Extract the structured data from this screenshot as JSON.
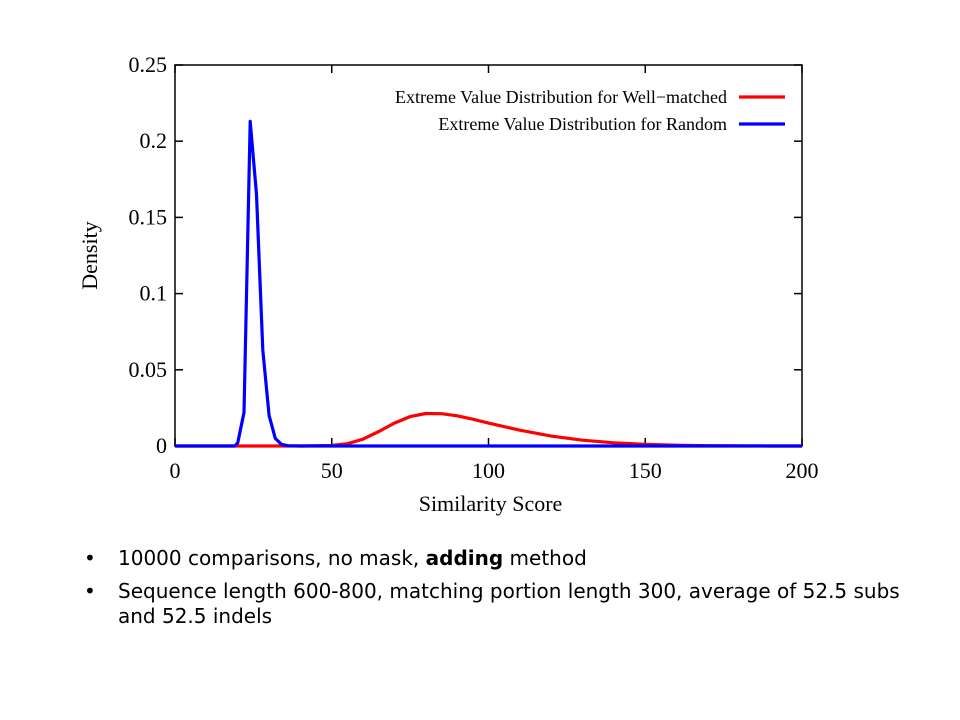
{
  "chart_data": {
    "type": "line",
    "xlabel": "Similarity Score",
    "ylabel": "Density",
    "xlim": [
      0,
      200
    ],
    "ylim": [
      0,
      0.25
    ],
    "x_ticks": [
      "0",
      "50",
      "100",
      "150",
      "200"
    ],
    "y_ticks": [
      "0",
      "0.05",
      "0.1",
      "0.15",
      "0.2",
      "0.25"
    ],
    "grid": false,
    "legend_position": "top-right",
    "series": [
      {
        "name": "Extreme Value Distribution for Well−matched",
        "color": "#ff0000",
        "x": [
          0,
          40,
          50,
          55,
          60,
          65,
          70,
          75,
          80,
          85,
          90,
          95,
          100,
          110,
          120,
          130,
          140,
          150,
          160,
          170,
          180,
          190,
          200
        ],
        "y": [
          0,
          0,
          0.0003,
          0.0015,
          0.0045,
          0.0095,
          0.015,
          0.0193,
          0.0213,
          0.0212,
          0.0198,
          0.0176,
          0.015,
          0.0104,
          0.0065,
          0.0038,
          0.0021,
          0.0011,
          0.0005,
          0.0002,
          0.0001,
          0,
          0
        ]
      },
      {
        "name": "Extreme Value Distribution for Random",
        "color": "#0000ff",
        "x": [
          0,
          19,
          20,
          22,
          24,
          26,
          28,
          30,
          32,
          34,
          36,
          40,
          200
        ],
        "y": [
          0,
          0,
          0.002,
          0.022,
          0.213,
          0.165,
          0.063,
          0.02,
          0.005,
          0.001,
          0.0002,
          0,
          0
        ]
      }
    ]
  },
  "bullets": [
    {
      "marker": "•",
      "text_before": "10000 comparisons, no mask, ",
      "bold": "adding",
      "text_after": " method"
    },
    {
      "marker": "•",
      "text": "Sequence length 600-800, matching portion length 300, average of 52.5 subs and 52.5 indels"
    }
  ]
}
